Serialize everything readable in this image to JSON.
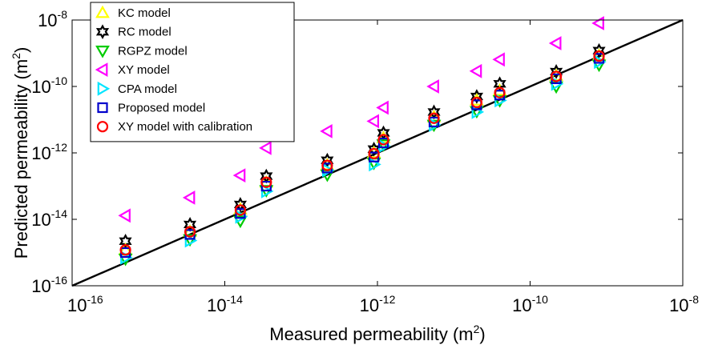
{
  "chart_data": {
    "type": "scatter",
    "title": "",
    "xlabel": "Measured permeability (m",
    "xlabel_sup": "2",
    "xlabel_close": ")",
    "ylabel": "Predicted permeability (m",
    "ylabel_sup": "2",
    "ylabel_close": ")",
    "x_scale": "log",
    "y_scale": "log",
    "xlim": [
      1e-16,
      1e-08
    ],
    "ylim": [
      1e-16,
      1e-08
    ],
    "grid": false,
    "legend_position": "top-left",
    "x_ticks": [
      {
        "base": "10",
        "exp": "-16"
      },
      {
        "base": "10",
        "exp": "-14"
      },
      {
        "base": "10",
        "exp": "-12"
      },
      {
        "base": "10",
        "exp": "-10"
      },
      {
        "base": "10",
        "exp": "-8"
      }
    ],
    "y_ticks": [
      {
        "base": "10",
        "exp": "-16"
      },
      {
        "base": "10",
        "exp": "-14"
      },
      {
        "base": "10",
        "exp": "-12"
      },
      {
        "base": "10",
        "exp": "-10"
      },
      {
        "base": "10",
        "exp": "-8"
      }
    ],
    "x": [
      5e-16,
      3.5e-15,
      1.6e-14,
      3.5e-14,
      2.2e-13,
      9e-13,
      1.2e-12,
      5.5e-12,
      2e-11,
      4e-11,
      2.2e-10,
      8e-10
    ],
    "reference_line": {
      "x": [
        1e-16,
        1e-08
      ],
      "y": [
        1e-16,
        1e-08
      ],
      "color": "#000000"
    },
    "series": [
      {
        "name": "KC model",
        "marker": "triangle-up",
        "color": "#ffff00",
        "values": [
          1.2e-15,
          4.3e-15,
          2e-14,
          1.3e-13,
          4.3e-13,
          1e-12,
          2.8e-12,
          1.2e-11,
          3.8e-11,
          7.5e-11,
          2.1e-10,
          8.5e-10
        ]
      },
      {
        "name": "RC model",
        "marker": "hexagram",
        "color": "#000000",
        "values": [
          2.2e-15,
          7e-15,
          2.8e-14,
          2e-13,
          6e-13,
          1.3e-12,
          4e-12,
          1.7e-11,
          5e-11,
          1.2e-10,
          2.8e-10,
          1.2e-09
        ]
      },
      {
        "name": "RGPZ model",
        "marker": "triangle-down",
        "color": "#00cc00",
        "values": [
          6.5e-16,
          2.5e-15,
          9e-15,
          7.5e-14,
          2.2e-13,
          5e-13,
          1.8e-12,
          7e-12,
          1.8e-11,
          3.8e-11,
          1e-10,
          4.5e-10
        ]
      },
      {
        "name": "XY model",
        "marker": "triangle-left",
        "color": "#ff00ff",
        "values": [
          1.3e-14,
          4.5e-14,
          2.1e-13,
          1.4e-12,
          4.5e-12,
          9e-12,
          2.3e-11,
          1e-10,
          2.9e-10,
          6.5e-10,
          2e-09,
          8e-09
        ]
      },
      {
        "name": "CPA model",
        "marker": "triangle-right",
        "color": "#00e5ff",
        "values": [
          7e-16,
          2.3e-15,
          1.2e-14,
          7e-14,
          3e-13,
          4.5e-13,
          1.6e-12,
          7e-12,
          1.7e-11,
          3.8e-11,
          1.2e-10,
          5.5e-10
        ]
      },
      {
        "name": "Proposed model",
        "marker": "square",
        "color": "#0000cc",
        "values": [
          1e-15,
          3.5e-15,
          1.5e-14,
          1e-13,
          3.5e-13,
          7.5e-13,
          2e-12,
          8.5e-12,
          2.8e-11,
          5.5e-11,
          1.7e-10,
          7e-10
        ]
      },
      {
        "name": "XY model with calibration",
        "marker": "circle",
        "color": "#ff0000",
        "values": [
          1.2e-15,
          4.2e-15,
          1.9e-14,
          1.3e-13,
          4.2e-13,
          9.5e-13,
          2.5e-12,
          1.1e-11,
          3.3e-11,
          6.5e-11,
          2e-10,
          8.2e-10
        ]
      }
    ]
  }
}
